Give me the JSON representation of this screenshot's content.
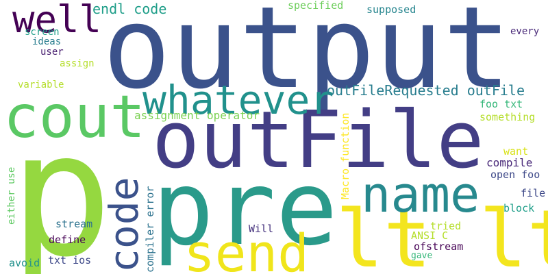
{
  "wordcloud": {
    "words": [
      {
        "text": "p",
        "color": "#95d840"
      },
      {
        "text": "output",
        "color": "#3b528b"
      },
      {
        "text": "pre",
        "color": "#2a9a8a"
      },
      {
        "text": "outFile",
        "color": "#433e85"
      },
      {
        "text": "lt lt",
        "color": "#f3e51e"
      },
      {
        "text": "cout",
        "color": "#5ac864"
      },
      {
        "text": "whatever",
        "color": "#21918c"
      },
      {
        "text": "name",
        "color": "#27898e"
      },
      {
        "text": "send",
        "color": "#f0e51b"
      },
      {
        "text": "code",
        "color": "#3b528b"
      },
      {
        "text": "well",
        "color": "#440154"
      },
      {
        "text": "endl code",
        "color": "#1f9e89"
      },
      {
        "text": "outFileRequested outFile",
        "color": "#287d8e"
      },
      {
        "text": "Macro function",
        "color": "#fde725"
      },
      {
        "text": "compiler error",
        "color": "#2c728e"
      },
      {
        "text": "assignment operator",
        "color": "#7ad151"
      },
      {
        "text": "specified",
        "color": "#6ccd5a"
      },
      {
        "text": "supposed",
        "color": "#25858e"
      },
      {
        "text": "every",
        "color": "#482878"
      },
      {
        "text": "screen",
        "color": "#1f9e89"
      },
      {
        "text": "ideas",
        "color": "#287d8e"
      },
      {
        "text": "user",
        "color": "#481f70"
      },
      {
        "text": "assign",
        "color": "#b5de2b"
      },
      {
        "text": "variable",
        "color": "#b5de2b"
      },
      {
        "text": "foo txt",
        "color": "#35b779"
      },
      {
        "text": "something",
        "color": "#b5de2b"
      },
      {
        "text": "want",
        "color": "#d8e219"
      },
      {
        "text": "compile",
        "color": "#482878"
      },
      {
        "text": "open foo",
        "color": "#3e4989"
      },
      {
        "text": "file",
        "color": "#3e4989"
      },
      {
        "text": "block",
        "color": "#1f9e89"
      },
      {
        "text": "either use",
        "color": "#5ec962"
      },
      {
        "text": "stream",
        "color": "#2c728e"
      },
      {
        "text": "Will",
        "color": "#46337e"
      },
      {
        "text": "tried",
        "color": "#b5de2b"
      },
      {
        "text": "ANSI C",
        "color": "#b5de2b"
      },
      {
        "text": "define",
        "color": "#440154"
      },
      {
        "text": "ofstream",
        "color": "#440154"
      },
      {
        "text": "gave",
        "color": "#35b779"
      },
      {
        "text": "avoid",
        "color": "#21918c"
      },
      {
        "text": "txt ios",
        "color": "#3e4989"
      }
    ]
  }
}
